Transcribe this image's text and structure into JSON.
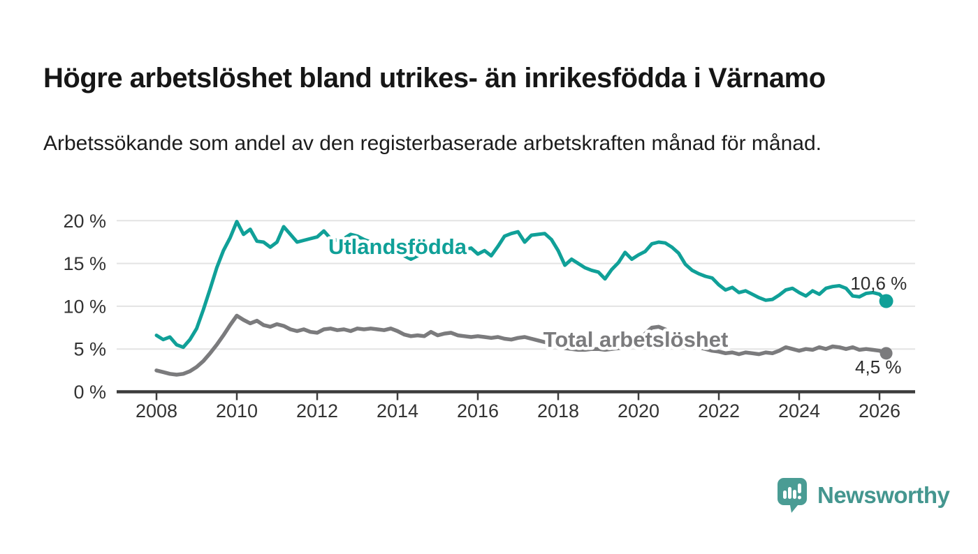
{
  "title": "Högre arbetslöshet bland utrikes- än inrikesfödda i Värnamo",
  "subtitle": "Arbetssökande som andel av den registerbaserade arbetskraften månad för månad.",
  "branding": {
    "logo_text": "Newsworthy",
    "logo_color": "#44968f",
    "logo_icon": "bar-chart-speech-bubble-icon"
  },
  "colors": {
    "foreign_born_line": "#10a098",
    "total_line": "#7b7b7d",
    "axis": "#3c3c3c",
    "grid": "#e3e3e3",
    "tick_text": "#333333",
    "annotation_text": "#2e2e2e",
    "background": "#ffffff"
  },
  "chart_data": {
    "type": "line",
    "title": "Högre arbetslöshet bland utrikes- än inrikesfödda i Värnamo",
    "subtitle": "Arbetssökande som andel av den registerbaserade arbetskraften månad för månad.",
    "xlabel": "",
    "ylabel": "",
    "grid": "horizontal",
    "legend_position": "inline-labels",
    "xlim": [
      2007.0,
      2026.9
    ],
    "ylim": [
      0,
      20
    ],
    "x_start": 2008.0,
    "x_step_years": 0.166667,
    "x_unit": "year (monthly data)",
    "y_unit": "%",
    "yticks": [
      {
        "v": 0,
        "label": "0 %"
      },
      {
        "v": 5,
        "label": "5 %"
      },
      {
        "v": 10,
        "label": "10 %"
      },
      {
        "v": 15,
        "label": "15 %"
      },
      {
        "v": 20,
        "label": "20 %"
      }
    ],
    "xticks": [
      {
        "v": 2008,
        "label": "2008"
      },
      {
        "v": 2010,
        "label": "2010"
      },
      {
        "v": 2012,
        "label": "2012"
      },
      {
        "v": 2014,
        "label": "2014"
      },
      {
        "v": 2016,
        "label": "2016"
      },
      {
        "v": 2018,
        "label": "2018"
      },
      {
        "v": 2020,
        "label": "2020"
      },
      {
        "v": 2022,
        "label": "2022"
      },
      {
        "v": 2024,
        "label": "2024"
      },
      {
        "v": 2026,
        "label": "2026"
      }
    ],
    "series": [
      {
        "id": "utlandsfodda",
        "name": "Utlandsfödda",
        "color": "#10a098",
        "line_width": 5,
        "dot_radius": 10,
        "label_pos": {
          "x": 2014.0,
          "y": 16.1
        },
        "end_label": "10,6 %",
        "end_value": 10.6,
        "end_label_pos": {
          "x": 2025.98,
          "y": 11.95
        },
        "values": [
          6.6,
          6.1,
          6.4,
          5.5,
          5.2,
          6.1,
          7.4,
          9.6,
          12.0,
          14.5,
          16.5,
          18.0,
          19.9,
          18.4,
          19.0,
          17.6,
          17.5,
          16.9,
          17.5,
          19.3,
          18.4,
          17.5,
          17.7,
          17.9,
          18.1,
          18.8,
          17.9,
          17.7,
          17.9,
          18.4,
          18.2,
          17.8,
          17.5,
          17.2,
          17.0,
          16.8,
          16.5,
          15.9,
          15.5,
          15.9,
          16.3,
          16.6,
          16.8,
          16.9,
          16.7,
          16.5,
          16.6,
          16.8,
          16.1,
          16.5,
          15.9,
          17.0,
          18.2,
          18.5,
          18.7,
          17.5,
          18.3,
          18.4,
          18.5,
          17.8,
          16.5,
          14.8,
          15.5,
          15.0,
          14.5,
          14.2,
          14.0,
          13.2,
          14.3,
          15.1,
          16.3,
          15.5,
          16.0,
          16.4,
          17.3,
          17.5,
          17.4,
          16.9,
          16.2,
          14.9,
          14.2,
          13.8,
          13.5,
          13.3,
          12.5,
          11.9,
          12.2,
          11.6,
          11.8,
          11.4,
          11.0,
          10.7,
          10.8,
          11.3,
          11.9,
          12.1,
          11.6,
          11.2,
          11.8,
          11.4,
          12.1,
          12.3,
          12.4,
          12.1,
          11.2,
          11.1,
          11.5,
          11.6,
          11.4,
          10.6
        ]
      },
      {
        "id": "total",
        "name": "Total arbetslöshet",
        "color": "#7b7b7d",
        "line_width": 5.5,
        "dot_radius": 9,
        "label_pos": {
          "x": 2019.93,
          "y": 5.26
        },
        "end_label": "4,5 %",
        "end_value": 4.5,
        "end_label_pos": {
          "x": 2025.97,
          "y": 2.16
        },
        "values": [
          2.5,
          2.3,
          2.1,
          2.0,
          2.1,
          2.4,
          2.9,
          3.6,
          4.5,
          5.5,
          6.6,
          7.8,
          8.9,
          8.4,
          8.0,
          8.3,
          7.8,
          7.6,
          7.9,
          7.7,
          7.3,
          7.1,
          7.3,
          7.0,
          6.9,
          7.3,
          7.4,
          7.2,
          7.3,
          7.1,
          7.4,
          7.3,
          7.4,
          7.3,
          7.2,
          7.4,
          7.1,
          6.7,
          6.5,
          6.6,
          6.5,
          7.0,
          6.6,
          6.8,
          6.9,
          6.6,
          6.5,
          6.4,
          6.5,
          6.4,
          6.3,
          6.4,
          6.2,
          6.1,
          6.3,
          6.4,
          6.2,
          6.0,
          5.8,
          5.6,
          5.3,
          5.1,
          5.0,
          4.9,
          4.9,
          5.0,
          5.0,
          4.9,
          5.0,
          5.1,
          5.2,
          5.5,
          6.0,
          6.8,
          7.5,
          7.6,
          7.3,
          6.8,
          6.3,
          5.9,
          5.5,
          5.2,
          5.0,
          4.8,
          4.7,
          4.5,
          4.6,
          4.4,
          4.6,
          4.5,
          4.4,
          4.6,
          4.5,
          4.8,
          5.2,
          5.0,
          4.8,
          5.0,
          4.9,
          5.2,
          5.0,
          5.3,
          5.2,
          5.0,
          5.2,
          4.9,
          5.0,
          4.9,
          4.8,
          4.5
        ]
      }
    ]
  }
}
